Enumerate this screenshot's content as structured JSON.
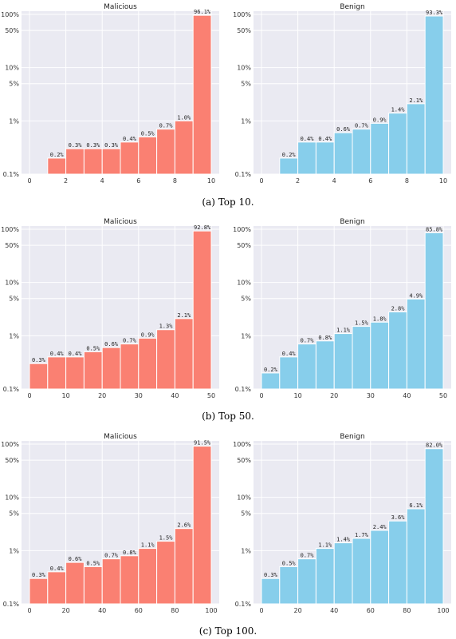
{
  "colors": {
    "malicious": "#fa8072",
    "benign": "#87ceeb",
    "panel_bg": "#eaeaf2",
    "grid": "#ffffff"
  },
  "captions": [
    "(a) Top 10.",
    "(b) Top 50.",
    "(c) Top 100."
  ],
  "chart_data": [
    {
      "type": "bar",
      "title": "Malicious",
      "yscale": "log",
      "ylim": [
        0.1,
        100
      ],
      "xlim": [
        0,
        10
      ],
      "yticks": [
        "0.1%",
        "1%",
        "5%",
        "10%",
        "50%",
        "100%"
      ],
      "xticks": [
        0,
        2,
        4,
        6,
        8,
        10
      ],
      "bin_edges": [
        1,
        2,
        3,
        4,
        5,
        6,
        7,
        8,
        9,
        10
      ],
      "values": [
        0.2,
        0.3,
        0.3,
        0.3,
        0.4,
        0.5,
        0.7,
        1.0,
        96.1
      ],
      "labels": [
        "0.2%",
        "0.3%",
        "0.3%",
        "0.3%",
        "0.4%",
        "0.5%",
        "0.7%",
        "1.0%",
        "96.1%"
      ]
    },
    {
      "type": "bar",
      "title": "Benign",
      "yscale": "log",
      "ylim": [
        0.1,
        100
      ],
      "xlim": [
        0,
        10
      ],
      "yticks": [
        "0.1%",
        "1%",
        "5%",
        "10%",
        "50%",
        "100%"
      ],
      "xticks": [
        0,
        2,
        4,
        6,
        8,
        10
      ],
      "bin_edges": [
        1,
        2,
        3,
        4,
        5,
        6,
        7,
        8,
        9,
        10
      ],
      "values": [
        0.2,
        0.4,
        0.4,
        0.6,
        0.7,
        0.9,
        1.4,
        2.1,
        93.3
      ],
      "labels": [
        "0.2%",
        "0.4%",
        "0.4%",
        "0.6%",
        "0.7%",
        "0.9%",
        "1.4%",
        "2.1%",
        "93.3%"
      ]
    },
    {
      "type": "bar",
      "title": "Malicious",
      "yscale": "log",
      "ylim": [
        0.1,
        100
      ],
      "xlim": [
        0,
        50
      ],
      "yticks": [
        "0.1%",
        "1%",
        "5%",
        "10%",
        "50%",
        "100%"
      ],
      "xticks": [
        0,
        10,
        20,
        30,
        40,
        50
      ],
      "bin_edges": [
        0,
        5,
        10,
        15,
        20,
        25,
        30,
        35,
        40,
        45,
        50
      ],
      "values": [
        0.3,
        0.4,
        0.4,
        0.5,
        0.6,
        0.7,
        0.9,
        1.3,
        2.1,
        92.8
      ],
      "labels": [
        "0.3%",
        "0.4%",
        "0.4%",
        "0.5%",
        "0.6%",
        "0.7%",
        "0.9%",
        "1.3%",
        "2.1%",
        "92.8%"
      ]
    },
    {
      "type": "bar",
      "title": "Benign",
      "yscale": "log",
      "ylim": [
        0.1,
        100
      ],
      "xlim": [
        0,
        50
      ],
      "yticks": [
        "0.1%",
        "1%",
        "5%",
        "10%",
        "50%",
        "100%"
      ],
      "xticks": [
        0,
        10,
        20,
        30,
        40,
        50
      ],
      "bin_edges": [
        0,
        5,
        10,
        15,
        20,
        25,
        30,
        35,
        40,
        45,
        50
      ],
      "values": [
        0.2,
        0.4,
        0.7,
        0.8,
        1.1,
        1.5,
        1.8,
        2.8,
        4.9,
        85.8
      ],
      "labels": [
        "0.2%",
        "0.4%",
        "0.7%",
        "0.8%",
        "1.1%",
        "1.5%",
        "1.8%",
        "2.8%",
        "4.9%",
        "85.8%"
      ]
    },
    {
      "type": "bar",
      "title": "Malicious",
      "yscale": "log",
      "ylim": [
        0.1,
        100
      ],
      "xlim": [
        0,
        100
      ],
      "yticks": [
        "0.1%",
        "1%",
        "5%",
        "10%",
        "50%",
        "100%"
      ],
      "xticks": [
        0,
        20,
        40,
        60,
        80,
        100
      ],
      "bin_edges": [
        0,
        10,
        20,
        30,
        40,
        50,
        60,
        70,
        80,
        90,
        100
      ],
      "values": [
        0.3,
        0.4,
        0.6,
        0.5,
        0.7,
        0.8,
        1.1,
        1.5,
        2.6,
        91.5
      ],
      "labels": [
        "0.3%",
        "0.4%",
        "0.6%",
        "0.5%",
        "0.7%",
        "0.8%",
        "1.1%",
        "1.5%",
        "2.6%",
        "91.5%"
      ]
    },
    {
      "type": "bar",
      "title": "Benign",
      "yscale": "log",
      "ylim": [
        0.1,
        100
      ],
      "xlim": [
        0,
        100
      ],
      "yticks": [
        "0.1%",
        "1%",
        "5%",
        "10%",
        "50%",
        "100%"
      ],
      "xticks": [
        0,
        20,
        40,
        60,
        80,
        100
      ],
      "bin_edges": [
        0,
        10,
        20,
        30,
        40,
        50,
        60,
        70,
        80,
        90,
        100
      ],
      "values": [
        0.3,
        0.5,
        0.7,
        1.1,
        1.4,
        1.7,
        2.4,
        3.6,
        6.1,
        82.0
      ],
      "labels": [
        "0.3%",
        "0.5%",
        "0.7%",
        "1.1%",
        "1.4%",
        "1.7%",
        "2.4%",
        "3.6%",
        "6.1%",
        "82.0%"
      ]
    }
  ]
}
